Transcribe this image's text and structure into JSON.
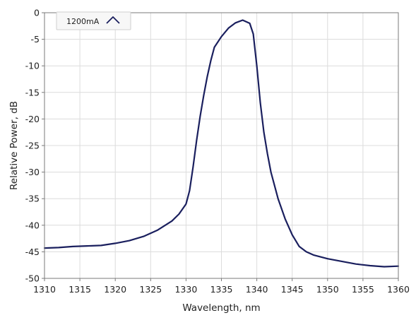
{
  "chart_data": {
    "type": "line",
    "title": "",
    "xlabel": "Wavelength, nm",
    "ylabel": "Relative Power, dB",
    "xlim": [
      1310,
      1360
    ],
    "ylim": [
      -50,
      0
    ],
    "x_ticks": [
      1310,
      1315,
      1320,
      1325,
      1330,
      1335,
      1340,
      1345,
      1350,
      1355,
      1360
    ],
    "x_tick_labels": [
      "1310",
      "1315",
      "1320",
      "1325",
      "1330",
      "1335",
      "1340",
      "1345",
      "1350",
      "1355",
      "1360"
    ],
    "y_ticks": [
      0,
      -5,
      -10,
      -15,
      -20,
      -25,
      -30,
      -35,
      -40,
      -45,
      -50
    ],
    "y_tick_labels": [
      "0",
      "-5",
      "-10",
      "-15",
      "-20",
      "-25",
      "-30",
      "-35",
      "-40",
      "-45",
      "-50"
    ],
    "grid": true,
    "legend": {
      "position": "top-left",
      "entries": [
        "1200mA"
      ]
    },
    "series": [
      {
        "name": "1200mA",
        "color": "#1a1f5e",
        "x": [
          1310,
          1312,
          1314,
          1316,
          1318,
          1320,
          1322,
          1324,
          1326,
          1328,
          1329,
          1330,
          1330.5,
          1331,
          1331.5,
          1332,
          1332.5,
          1333,
          1333.5,
          1334,
          1335,
          1336,
          1337,
          1338,
          1339,
          1339.5,
          1340,
          1340.5,
          1341,
          1341.5,
          1342,
          1343,
          1344,
          1345,
          1346,
          1347,
          1348,
          1350,
          1352,
          1354,
          1356,
          1358,
          1360
        ],
        "y": [
          -44.3,
          -44.2,
          -44.0,
          -43.9,
          -43.8,
          -43.4,
          -42.9,
          -42.1,
          -40.9,
          -39.2,
          -37.9,
          -36.0,
          -33.5,
          -29.0,
          -24.0,
          -19.5,
          -15.5,
          -12.0,
          -9.0,
          -6.5,
          -4.5,
          -2.9,
          -1.9,
          -1.4,
          -2.0,
          -4.0,
          -10.0,
          -17.0,
          -22.5,
          -26.5,
          -30.0,
          -35.0,
          -38.8,
          -41.8,
          -44.0,
          -45.0,
          -45.6,
          -46.3,
          -46.8,
          -47.3,
          -47.6,
          -47.8,
          -47.7
        ]
      }
    ]
  }
}
